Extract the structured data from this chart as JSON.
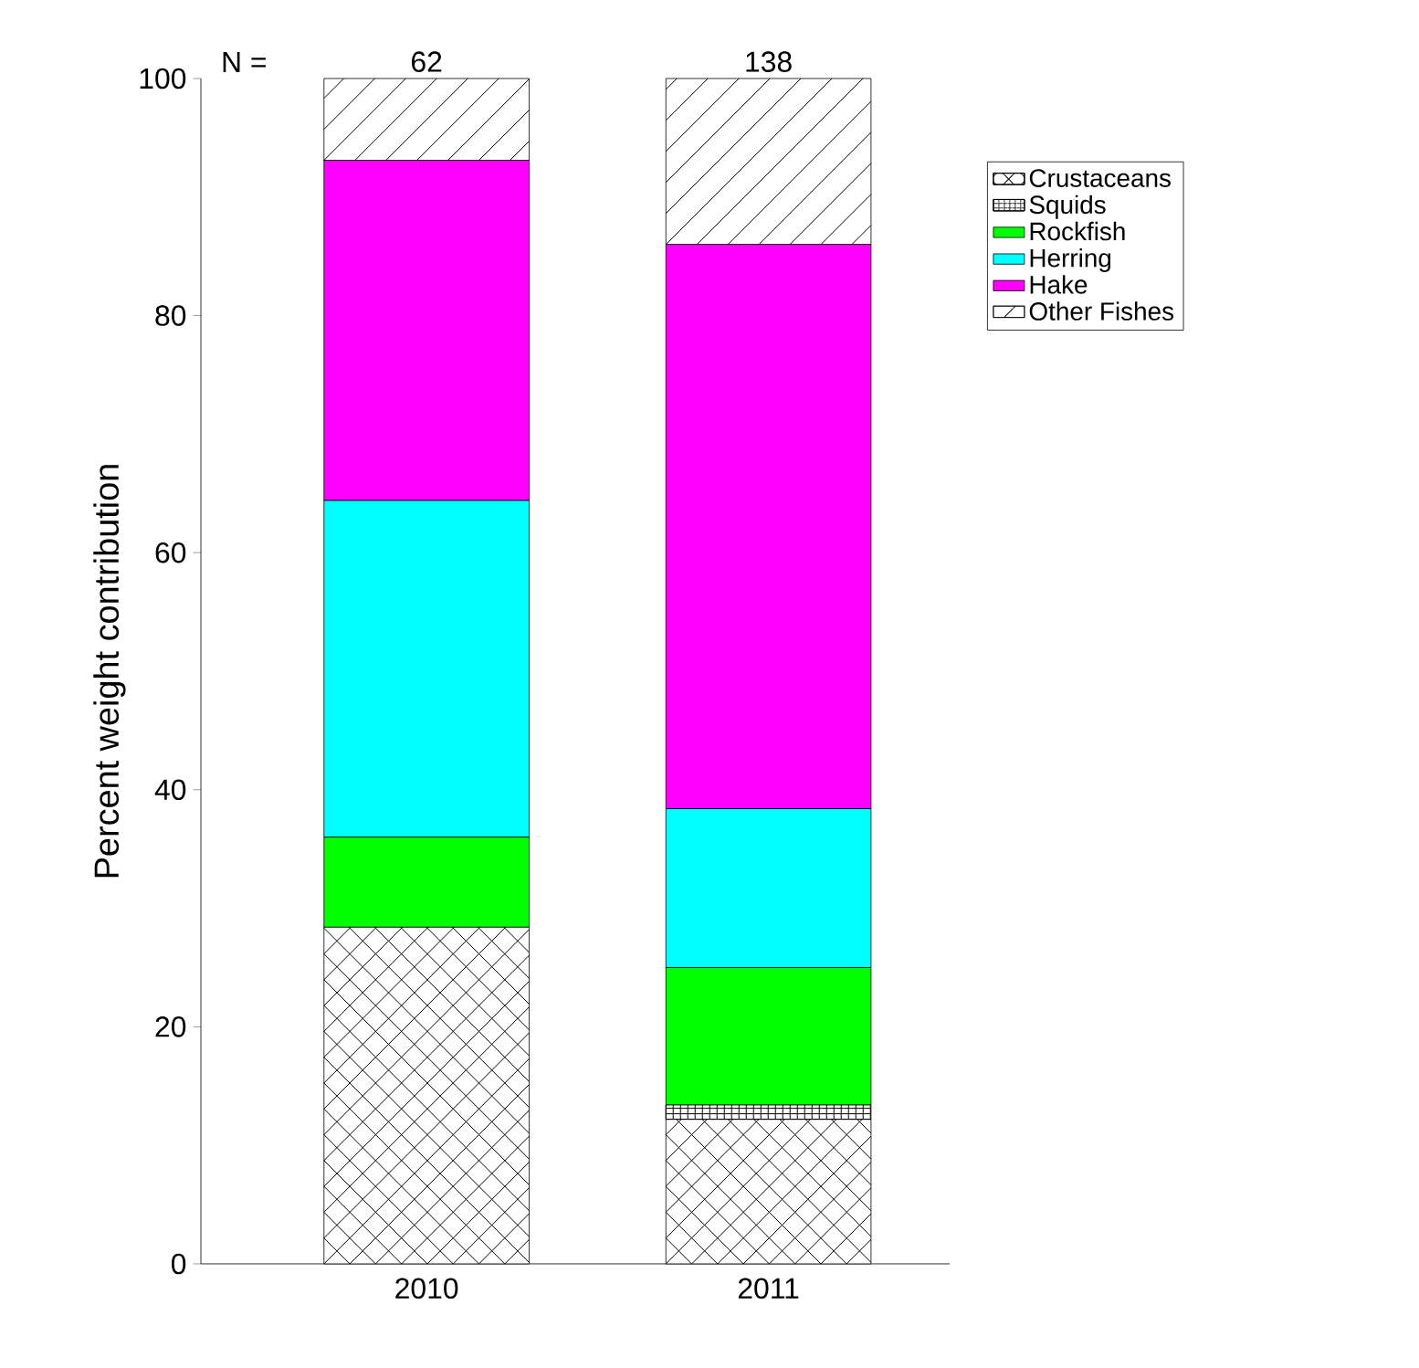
{
  "chart_data": {
    "type": "bar",
    "stacked": true,
    "ylabel": "Percent weight contribution",
    "categories": [
      "2010",
      "2011"
    ],
    "series": [
      {
        "name": "Crustaceans",
        "color": "#000000",
        "values": [
          28.4,
          12.2
        ]
      },
      {
        "name": "Squids",
        "color": "#000000",
        "values": [
          0,
          1.2
        ]
      },
      {
        "name": "Rockfish",
        "color": "#00ff00",
        "values": [
          7.6,
          11.6
        ]
      },
      {
        "name": "Herring",
        "color": "#00ffff",
        "values": [
          28.4,
          13.4
        ]
      },
      {
        "name": "Hake",
        "color": "#ff00ff",
        "values": [
          28.7,
          47.6
        ]
      },
      {
        "name": "Other Fishes",
        "color": "#000000",
        "values": [
          6.9,
          14.0
        ]
      }
    ],
    "ylim": [
      0,
      100
    ],
    "yticks": [
      0,
      20,
      40,
      60,
      80,
      100
    ],
    "legend": "right",
    "annotations": [
      "N =",
      {
        "text": "62",
        "x": "2010",
        "y": 100
      },
      {
        "text": "138",
        "x": "2011",
        "y": 100
      }
    ]
  }
}
